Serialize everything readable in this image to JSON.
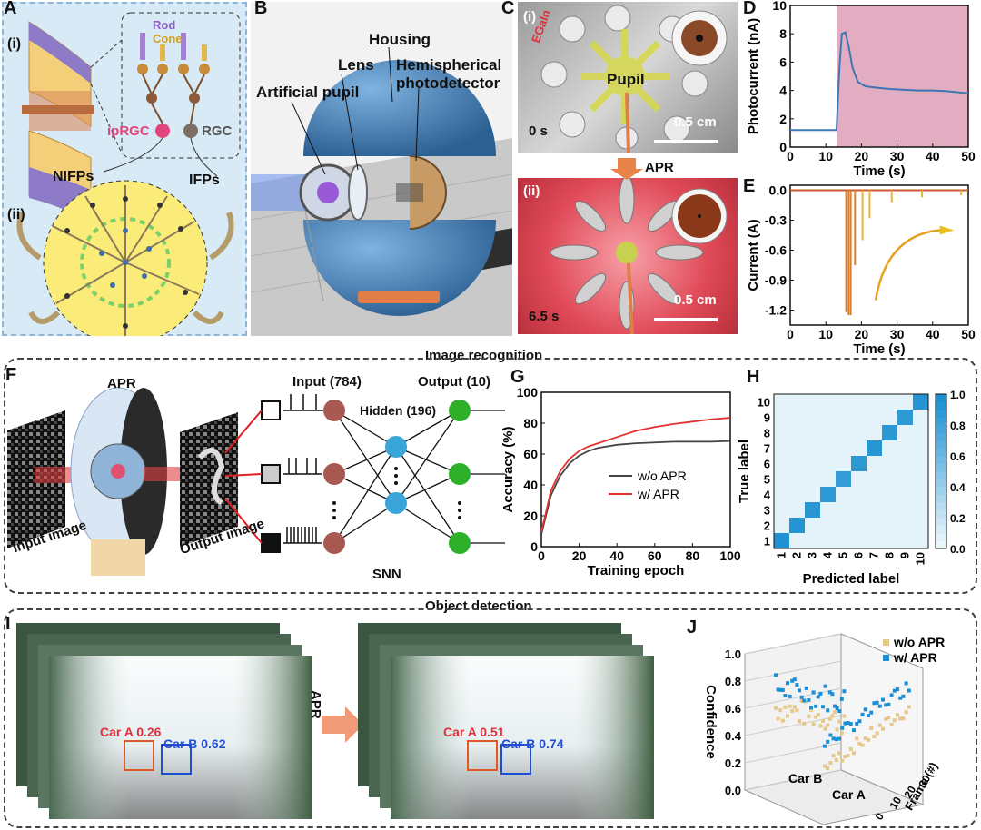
{
  "panels": {
    "A": "A",
    "B": "B",
    "C": "C",
    "D": "D",
    "E": "E",
    "F": "F",
    "G": "G",
    "H": "H",
    "I": "I",
    "J": "J"
  },
  "panel_a": {
    "sub_i": "(i)",
    "sub_ii": "(ii)",
    "rod": "Rod",
    "cone": "Cone",
    "iprgc": "ipRGC",
    "rgc": "RGC",
    "nifps": "NIFPs",
    "ifps": "IFPs"
  },
  "panel_b": {
    "housing": "Housing",
    "lens": "Lens",
    "hemispherical": "Hemispherical",
    "photodetector": "photodetector",
    "artificial_pupil": "Artificial pupil"
  },
  "panel_c": {
    "sub_i": "(i)",
    "sub_ii": "(ii)",
    "egain": "EGaIn",
    "pupil": "Pupil",
    "time_0": "0 s",
    "time_65": "6.5 s",
    "scale_bar": "0.5 cm",
    "arrow": "APR"
  },
  "sections": {
    "image_recognition": "Image recognition",
    "object_detection": "Object detection"
  },
  "panel_f": {
    "apr": "APR",
    "input_image": "Input image",
    "output_image": "Output image",
    "input": "Input (784)",
    "hidden": "Hidden (196)",
    "output": "Output (10)",
    "snn": "SNN"
  },
  "panel_i": {
    "arrow": "APR",
    "left_car_a": "Car A 0.26",
    "left_car_b": "Car B 0.62",
    "right_car_a": "Car A 0.51",
    "right_car_b": "Car B 0.74"
  },
  "colors": {
    "panel_a_bg": "#d6eaf8",
    "pink": "#e0457b",
    "blue_sphere": "#3f7fb8",
    "red": "#e0303a",
    "blue": "#1f5fd0",
    "heat": "#1a8fd1",
    "orange": "#e8834a"
  },
  "chart_data": [
    {
      "id": "D",
      "type": "line",
      "xlabel": "Time (s)",
      "ylabel": "Photocurrent (nA)",
      "xlim": [
        0,
        50
      ],
      "ylim": [
        0,
        10
      ],
      "xticks": [
        0,
        10,
        20,
        30,
        40,
        50
      ],
      "yticks": [
        0,
        2,
        4,
        6,
        8,
        10
      ],
      "x": [
        0,
        5,
        10,
        13,
        13.8,
        14.5,
        15.5,
        16.5,
        17.5,
        19,
        21,
        24,
        28,
        32,
        36,
        40,
        44,
        48,
        50
      ],
      "y": [
        1.2,
        1.2,
        1.2,
        1.2,
        5.5,
        8.0,
        8.1,
        7.0,
        5.6,
        4.6,
        4.3,
        4.2,
        4.1,
        4.05,
        4.0,
        4.0,
        3.95,
        3.85,
        3.8
      ],
      "shaded_from": 13
    },
    {
      "id": "E",
      "type": "line",
      "xlabel": "Time (s)",
      "ylabel": "Current (A)",
      "xlim": [
        0,
        50
      ],
      "ylim": [
        -1.35,
        0.05
      ],
      "xticks": [
        0,
        10,
        20,
        30,
        40,
        50
      ],
      "yticks": [
        0.0,
        -0.3,
        -0.6,
        -0.9,
        -1.2
      ],
      "spikes": [
        {
          "t": 15.7,
          "v": -1.22
        },
        {
          "t": 16.4,
          "v": -1.25
        },
        {
          "t": 17.0,
          "v": -1.25
        },
        {
          "t": 18.2,
          "v": -0.75
        },
        {
          "t": 20.3,
          "v": -0.5
        },
        {
          "t": 22.3,
          "v": -0.28
        },
        {
          "t": 28.5,
          "v": -0.12
        },
        {
          "t": 37.0,
          "v": -0.07
        },
        {
          "t": 48.0,
          "v": -0.05
        }
      ]
    },
    {
      "id": "G",
      "type": "line",
      "xlabel": "Training epoch",
      "ylabel": "Accuracy (%)",
      "xlim": [
        0,
        100
      ],
      "ylim": [
        0,
        100
      ],
      "xticks": [
        0,
        20,
        40,
        60,
        80,
        100
      ],
      "yticks": [
        0,
        20,
        40,
        60,
        80,
        100
      ],
      "x": [
        0,
        2,
        5,
        8,
        10,
        15,
        20,
        25,
        30,
        40,
        50,
        60,
        70,
        80,
        90,
        100
      ],
      "series": [
        {
          "name": "w/o APR",
          "values": [
            8,
            18,
            33,
            41,
            46,
            54,
            59,
            62,
            64,
            66,
            67,
            67.5,
            68,
            68,
            68,
            68.5
          ]
        },
        {
          "name": "w/ APR",
          "values": [
            10,
            20,
            36,
            44,
            49,
            57,
            62,
            65,
            67,
            71,
            75,
            77.5,
            79.5,
            81,
            82.5,
            83.5
          ]
        }
      ]
    },
    {
      "id": "H",
      "type": "heatmap",
      "xlabel": "Predicted label",
      "ylabel": "True label",
      "categories": [
        "1",
        "2",
        "3",
        "4",
        "5",
        "6",
        "7",
        "8",
        "9",
        "10"
      ],
      "colorbar_ticks": [
        0.0,
        0.2,
        0.4,
        0.6,
        0.8,
        1.0
      ],
      "diagonal": [
        0.97,
        0.95,
        0.93,
        0.9,
        0.88,
        0.9,
        0.93,
        0.92,
        0.9,
        0.95
      ],
      "off_diagonal_value": 0.04
    },
    {
      "id": "J",
      "type": "scatter",
      "zlabel": "Confidence",
      "xlabel": "Frame (#)",
      "xticks": [
        0,
        10,
        20,
        30
      ],
      "zticks": [
        0.0,
        0.2,
        0.4,
        0.6,
        0.8,
        1.0
      ],
      "category_axis": [
        "Car B",
        "Car A"
      ],
      "series": [
        {
          "name": "w/o APR"
        },
        {
          "name": "w/ APR"
        }
      ]
    }
  ]
}
